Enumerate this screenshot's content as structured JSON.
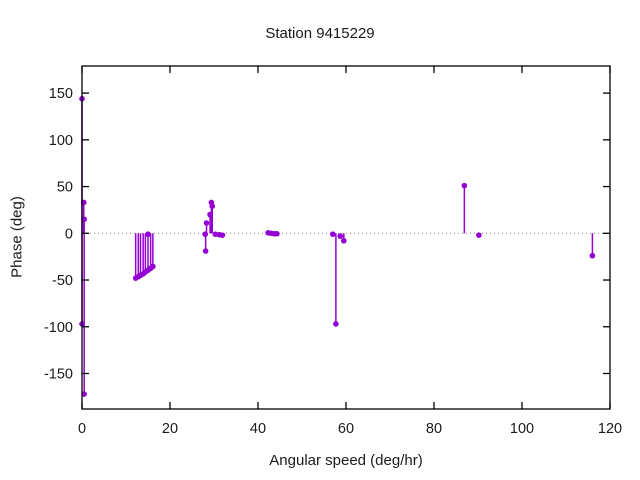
{
  "chart_data": {
    "type": "scatter",
    "style": "impulses+points",
    "title": "Station 9415229",
    "xlabel": "Angular speed (deg/hr)",
    "ylabel": "Phase (deg)",
    "xlim": [
      0,
      120
    ],
    "ylim": [
      -188,
      179
    ],
    "xticks": [
      0,
      20,
      40,
      60,
      80,
      100,
      120
    ],
    "yticks": [
      -150,
      -100,
      -50,
      0,
      50,
      100,
      150
    ],
    "grid": false,
    "legend_position": "none",
    "zero_line_y": 0,
    "series": [
      {
        "name": "phase",
        "color": "#9400d3",
        "marker": "filled-circle",
        "points": [
          [
            0.0,
            144
          ],
          [
            0.0,
            -97
          ],
          [
            0.4,
            33
          ],
          [
            0.5,
            15
          ],
          [
            0.5,
            -172
          ],
          [
            12.2,
            -48
          ],
          [
            12.8,
            -46.5
          ],
          [
            13.3,
            -45
          ],
          [
            13.9,
            -43.5
          ],
          [
            14.4,
            -41.5
          ],
          [
            15.0,
            -39.5
          ],
          [
            15.6,
            -37.5
          ],
          [
            16.1,
            -35.5
          ],
          [
            15.0,
            -1
          ],
          [
            28.0,
            -1
          ],
          [
            28.1,
            -19
          ],
          [
            28.3,
            11
          ],
          [
            29.1,
            20
          ],
          [
            29.4,
            33
          ],
          [
            29.6,
            29
          ],
          [
            30.3,
            -1
          ],
          [
            31.2,
            -1.5
          ],
          [
            31.9,
            -2
          ],
          [
            42.3,
            0.5
          ],
          [
            43.0,
            0
          ],
          [
            43.7,
            -0.5
          ],
          [
            44.3,
            -0.5
          ],
          [
            57.0,
            -1
          ],
          [
            57.7,
            -97
          ],
          [
            58.7,
            -3
          ],
          [
            59.5,
            -8
          ],
          [
            86.9,
            51
          ],
          [
            90.2,
            -2
          ],
          [
            116.0,
            -24
          ]
        ]
      }
    ]
  },
  "colors": {
    "background": "#ffffff",
    "axis": "#000000",
    "text": "#1a1a1a",
    "zero_line": "#8a8a8a",
    "series": "#9400d3"
  }
}
